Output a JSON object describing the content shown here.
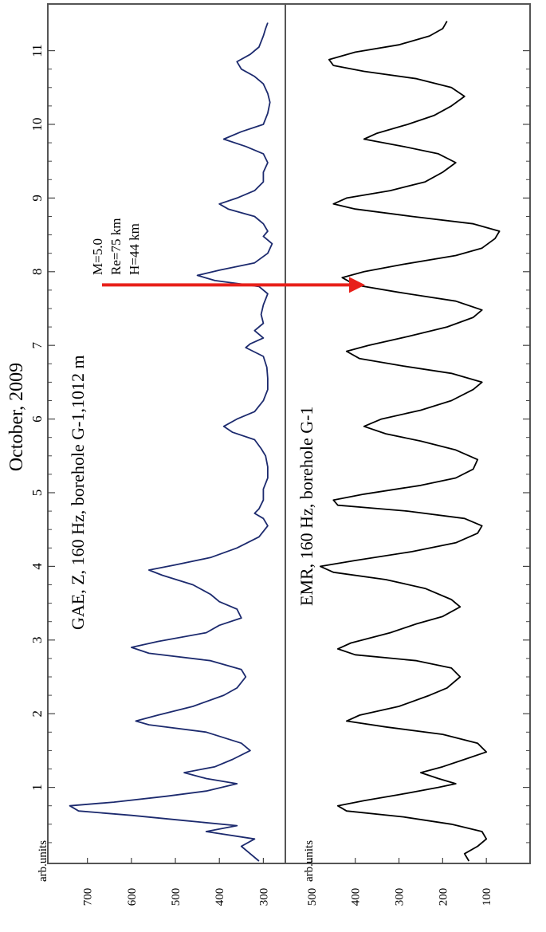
{
  "chart_data": {
    "type": "line",
    "orientation": "rotated-90-ccw",
    "title": "October, 2009",
    "x_axis": {
      "label": "",
      "range": [
        0,
        11.45
      ],
      "ticks": [
        1,
        2,
        3,
        4,
        5,
        6,
        7,
        8,
        9,
        10,
        11
      ],
      "tick_labels": [
        "1",
        "2",
        "3",
        "4",
        "5",
        "6",
        "7",
        "8",
        "9",
        "10",
        "11"
      ]
    },
    "panels": [
      {
        "id": "top",
        "series_label": "GAE, Z, 160 Hz, borehole G-1,1012 m",
        "color": "#1c2a6e",
        "ylabel": "arb.units",
        "ylim": [
          250,
          790
        ],
        "yticks": [
          300,
          400,
          500,
          600,
          700
        ],
        "ytick_labels": [
          "300",
          "400",
          "500",
          "600",
          "700"
        ],
        "points": [
          [
            0.0,
            310
          ],
          [
            0.1,
            330
          ],
          [
            0.2,
            350
          ],
          [
            0.3,
            320
          ],
          [
            0.4,
            430
          ],
          [
            0.48,
            360
          ],
          [
            0.55,
            480
          ],
          [
            0.62,
            600
          ],
          [
            0.68,
            720
          ],
          [
            0.75,
            740
          ],
          [
            0.8,
            640
          ],
          [
            0.88,
            520
          ],
          [
            0.95,
            430
          ],
          [
            1.05,
            360
          ],
          [
            1.12,
            430
          ],
          [
            1.2,
            480
          ],
          [
            1.28,
            410
          ],
          [
            1.38,
            370
          ],
          [
            1.5,
            330
          ],
          [
            1.6,
            350
          ],
          [
            1.75,
            430
          ],
          [
            1.85,
            560
          ],
          [
            1.9,
            590
          ],
          [
            1.98,
            540
          ],
          [
            2.1,
            460
          ],
          [
            2.25,
            390
          ],
          [
            2.35,
            360
          ],
          [
            2.5,
            340
          ],
          [
            2.6,
            350
          ],
          [
            2.72,
            420
          ],
          [
            2.82,
            560
          ],
          [
            2.9,
            600
          ],
          [
            2.98,
            540
          ],
          [
            3.1,
            430
          ],
          [
            3.2,
            400
          ],
          [
            3.3,
            350
          ],
          [
            3.42,
            360
          ],
          [
            3.52,
            400
          ],
          [
            3.62,
            420
          ],
          [
            3.75,
            460
          ],
          [
            3.88,
            530
          ],
          [
            3.95,
            560
          ],
          [
            4.02,
            500
          ],
          [
            4.12,
            420
          ],
          [
            4.25,
            360
          ],
          [
            4.4,
            310
          ],
          [
            4.55,
            290
          ],
          [
            4.65,
            300
          ],
          [
            4.72,
            320
          ],
          [
            4.78,
            310
          ],
          [
            4.9,
            300
          ],
          [
            5.05,
            300
          ],
          [
            5.2,
            290
          ],
          [
            5.35,
            290
          ],
          [
            5.5,
            295
          ],
          [
            5.6,
            305
          ],
          [
            5.72,
            320
          ],
          [
            5.82,
            370
          ],
          [
            5.9,
            390
          ],
          [
            6.0,
            360
          ],
          [
            6.1,
            320
          ],
          [
            6.25,
            300
          ],
          [
            6.4,
            290
          ],
          [
            6.55,
            290
          ],
          [
            6.7,
            292
          ],
          [
            6.85,
            300
          ],
          [
            6.97,
            340
          ],
          [
            7.02,
            330
          ],
          [
            7.1,
            300
          ],
          [
            7.2,
            320
          ],
          [
            7.3,
            300
          ],
          [
            7.42,
            305
          ],
          [
            7.55,
            300
          ],
          [
            7.7,
            290
          ],
          [
            7.8,
            310
          ],
          [
            7.88,
            410
          ],
          [
            7.95,
            450
          ],
          [
            8.02,
            400
          ],
          [
            8.12,
            320
          ],
          [
            8.25,
            290
          ],
          [
            8.38,
            280
          ],
          [
            8.48,
            300
          ],
          [
            8.55,
            290
          ],
          [
            8.65,
            300
          ],
          [
            8.75,
            320
          ],
          [
            8.85,
            380
          ],
          [
            8.92,
            400
          ],
          [
            9.0,
            360
          ],
          [
            9.1,
            320
          ],
          [
            9.22,
            300
          ],
          [
            9.35,
            300
          ],
          [
            9.48,
            290
          ],
          [
            9.6,
            300
          ],
          [
            9.7,
            340
          ],
          [
            9.8,
            390
          ],
          [
            9.9,
            350
          ],
          [
            10.0,
            300
          ],
          [
            10.15,
            290
          ],
          [
            10.3,
            285
          ],
          [
            10.42,
            290
          ],
          [
            10.55,
            300
          ],
          [
            10.65,
            320
          ],
          [
            10.75,
            350
          ],
          [
            10.85,
            360
          ],
          [
            10.95,
            330
          ],
          [
            11.05,
            310
          ],
          [
            11.2,
            300
          ],
          [
            11.3,
            295
          ],
          [
            11.38,
            290
          ]
        ]
      },
      {
        "id": "bottom",
        "series_label": "EMR, 160 Hz, borehole G-1",
        "color": "#000000",
        "ylabel": "arb.units",
        "ylim": [
          0,
          560
        ],
        "yticks": [
          100,
          200,
          300,
          400,
          500
        ],
        "ytick_labels": [
          "100",
          "200",
          "300",
          "400",
          "500"
        ],
        "points": [
          [
            0.0,
            140
          ],
          [
            0.1,
            150
          ],
          [
            0.2,
            120
          ],
          [
            0.3,
            100
          ],
          [
            0.4,
            110
          ],
          [
            0.5,
            180
          ],
          [
            0.6,
            290
          ],
          [
            0.68,
            420
          ],
          [
            0.75,
            440
          ],
          [
            0.82,
            380
          ],
          [
            0.9,
            300
          ],
          [
            1.0,
            210
          ],
          [
            1.05,
            170
          ],
          [
            1.12,
            210
          ],
          [
            1.2,
            250
          ],
          [
            1.28,
            200
          ],
          [
            1.38,
            150
          ],
          [
            1.48,
            100
          ],
          [
            1.6,
            120
          ],
          [
            1.72,
            200
          ],
          [
            1.82,
            330
          ],
          [
            1.9,
            420
          ],
          [
            1.98,
            390
          ],
          [
            2.1,
            300
          ],
          [
            2.25,
            230
          ],
          [
            2.35,
            190
          ],
          [
            2.5,
            160
          ],
          [
            2.62,
            180
          ],
          [
            2.72,
            260
          ],
          [
            2.8,
            400
          ],
          [
            2.88,
            440
          ],
          [
            2.96,
            410
          ],
          [
            3.1,
            320
          ],
          [
            3.22,
            260
          ],
          [
            3.32,
            200
          ],
          [
            3.45,
            160
          ],
          [
            3.55,
            180
          ],
          [
            3.7,
            240
          ],
          [
            3.82,
            330
          ],
          [
            3.92,
            450
          ],
          [
            4.0,
            480
          ],
          [
            4.08,
            400
          ],
          [
            4.2,
            270
          ],
          [
            4.32,
            170
          ],
          [
            4.45,
            120
          ],
          [
            4.55,
            110
          ],
          [
            4.65,
            150
          ],
          [
            4.75,
            280
          ],
          [
            4.83,
            440
          ],
          [
            4.9,
            450
          ],
          [
            4.98,
            380
          ],
          [
            5.1,
            250
          ],
          [
            5.2,
            170
          ],
          [
            5.32,
            130
          ],
          [
            5.45,
            120
          ],
          [
            5.58,
            170
          ],
          [
            5.7,
            250
          ],
          [
            5.8,
            330
          ],
          [
            5.9,
            380
          ],
          [
            6.0,
            340
          ],
          [
            6.12,
            250
          ],
          [
            6.25,
            180
          ],
          [
            6.4,
            130
          ],
          [
            6.5,
            110
          ],
          [
            6.62,
            180
          ],
          [
            6.72,
            290
          ],
          [
            6.82,
            390
          ],
          [
            6.92,
            420
          ],
          [
            7.0,
            370
          ],
          [
            7.12,
            280
          ],
          [
            7.25,
            190
          ],
          [
            7.38,
            130
          ],
          [
            7.48,
            110
          ],
          [
            7.6,
            170
          ],
          [
            7.72,
            300
          ],
          [
            7.82,
            400
          ],
          [
            7.92,
            430
          ],
          [
            8.0,
            380
          ],
          [
            8.1,
            290
          ],
          [
            8.22,
            170
          ],
          [
            8.32,
            110
          ],
          [
            8.45,
            80
          ],
          [
            8.55,
            70
          ],
          [
            8.65,
            130
          ],
          [
            8.75,
            270
          ],
          [
            8.85,
            400
          ],
          [
            8.92,
            450
          ],
          [
            9.0,
            420
          ],
          [
            9.1,
            320
          ],
          [
            9.22,
            240
          ],
          [
            9.35,
            200
          ],
          [
            9.48,
            170
          ],
          [
            9.6,
            210
          ],
          [
            9.7,
            290
          ],
          [
            9.8,
            380
          ],
          [
            9.88,
            350
          ],
          [
            10.0,
            280
          ],
          [
            10.12,
            220
          ],
          [
            10.25,
            180
          ],
          [
            10.38,
            150
          ],
          [
            10.5,
            180
          ],
          [
            10.62,
            260
          ],
          [
            10.72,
            380
          ],
          [
            10.8,
            450
          ],
          [
            10.88,
            460
          ],
          [
            10.98,
            400
          ],
          [
            11.08,
            300
          ],
          [
            11.2,
            230
          ],
          [
            11.3,
            200
          ],
          [
            11.4,
            190
          ]
        ]
      }
    ],
    "annotation": {
      "lines": [
        "M=5.0",
        "Re=75 km",
        "H=44 km"
      ],
      "arrow_color": "#e8201a",
      "arrow_day": 7.82
    }
  }
}
